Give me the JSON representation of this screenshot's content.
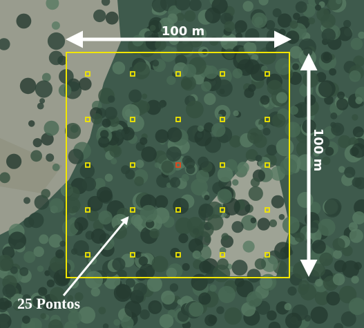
{
  "labels": {
    "top_width": "100 m",
    "right_height": "100 m",
    "points": "25 Pontos"
  }
}
